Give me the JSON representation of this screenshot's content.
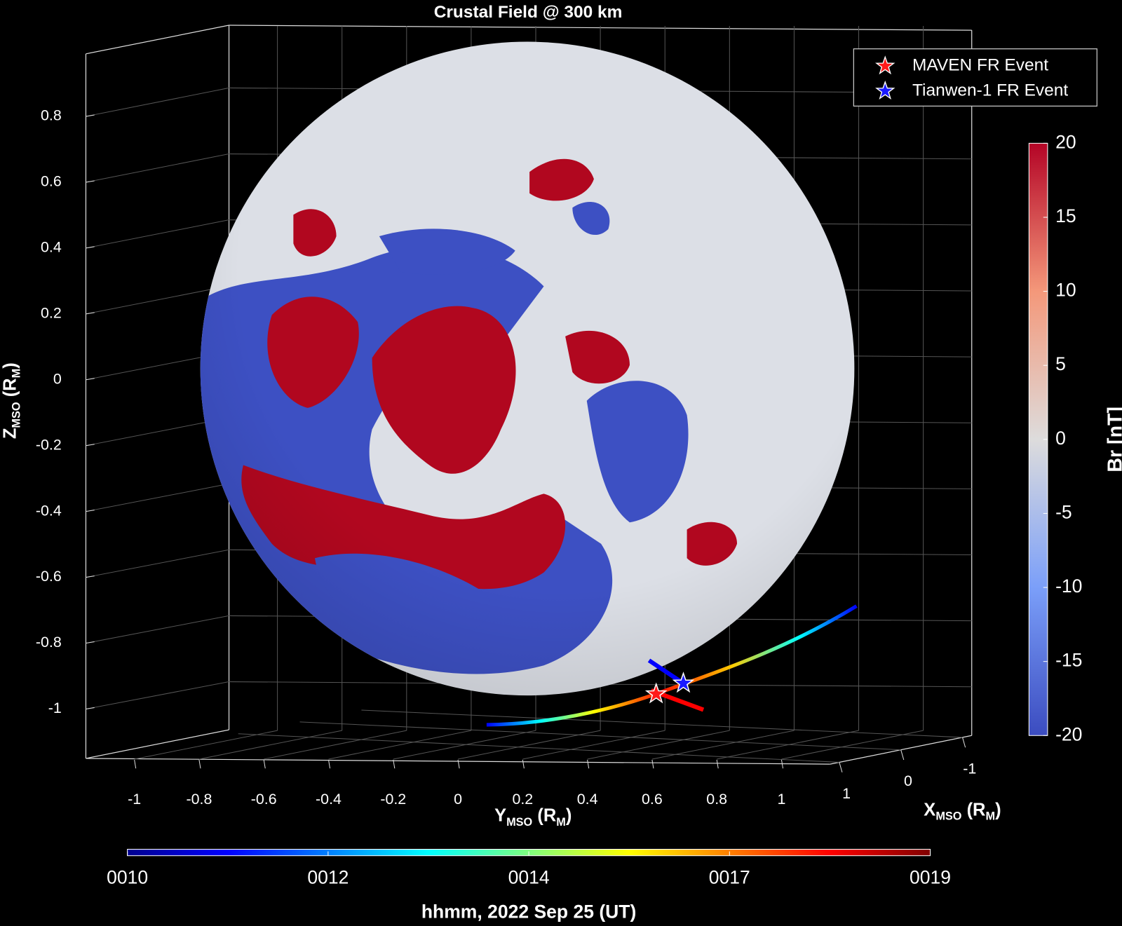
{
  "chart_data": {
    "type": "surface",
    "title": "Crustal Field @ 300 km",
    "zlabel": [
      "Z",
      "MSO",
      " (R",
      "M",
      ")"
    ],
    "ylabel": [
      "Y",
      "MSO",
      " (R",
      "M",
      ")"
    ],
    "xlabel": [
      "X",
      "MSO",
      " (R",
      "M",
      ")"
    ],
    "zlim": [
      -1.15,
      0.99
    ],
    "zticks": [
      0.8,
      0.6,
      0.4,
      0.2,
      0,
      -0.2,
      -0.4,
      -0.6,
      -0.8,
      -1
    ],
    "ylim": [
      -1.15,
      1.15
    ],
    "yticks": [
      -1,
      -0.8,
      -0.6,
      -0.4,
      -0.2,
      0,
      0.2,
      0.4,
      0.6,
      0.8,
      1
    ],
    "xlim": [
      -1.15,
      1.15
    ],
    "xticks": [
      -1,
      0,
      1
    ],
    "grid": true,
    "legend": [
      {
        "name": "MAVEN FR Event",
        "color": "#ff1a1a"
      },
      {
        "name": "Tianwen-1 FR Event",
        "color": "#1a1aff"
      }
    ],
    "colorbar": {
      "label": "Br [nT]",
      "lim": [
        -20,
        20
      ],
      "ticks": [
        20,
        15,
        10,
        5,
        0,
        -5,
        -10,
        -15,
        -20
      ]
    },
    "time_colorbar": {
      "label": "hhmm, 2022 Sep 25 (UT)",
      "ticks": [
        "0010",
        "0012",
        "0014",
        "0017",
        "0019"
      ]
    }
  }
}
